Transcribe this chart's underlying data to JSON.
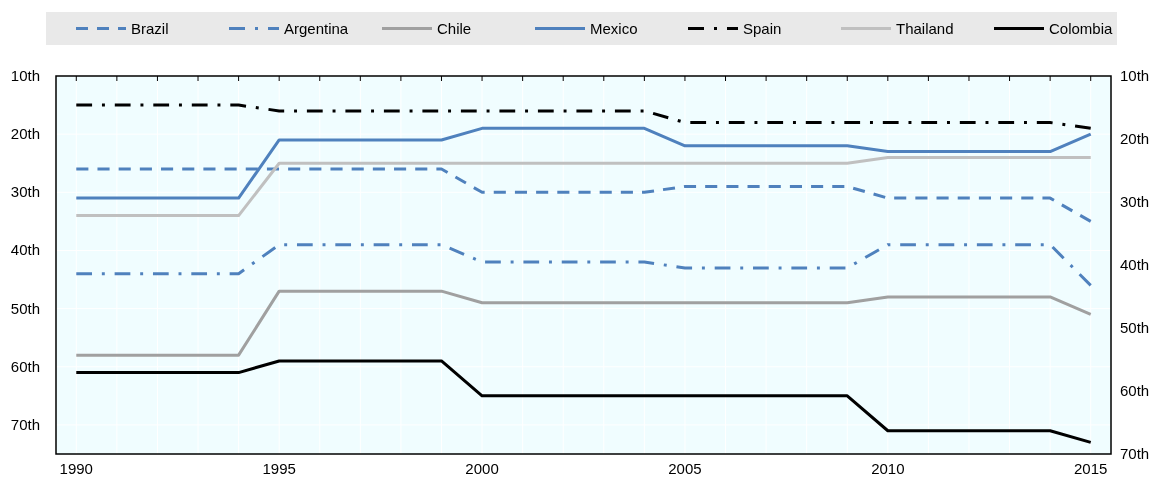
{
  "chart_data": {
    "type": "line",
    "x": [
      1990,
      1994,
      1995,
      1999,
      2000,
      2004,
      2005,
      2009,
      2010,
      2014,
      2015
    ],
    "series": [
      {
        "name": "Brazil",
        "color": "#4f81bd",
        "line_style": "dashed",
        "values": [
          26,
          26,
          26,
          26,
          30,
          30,
          29,
          29,
          31,
          31,
          35
        ]
      },
      {
        "name": "Argentina",
        "color": "#4f81bd",
        "line_style": "dashdot",
        "values": [
          44,
          44,
          39,
          39,
          42,
          42,
          43,
          43,
          39,
          39,
          46
        ]
      },
      {
        "name": "Chile",
        "color": "#a0a0a0",
        "line_style": "solid",
        "values": [
          58,
          58,
          47,
          47,
          49,
          49,
          49,
          49,
          48,
          48,
          51
        ]
      },
      {
        "name": "Mexico",
        "color": "#4f81bd",
        "line_style": "solid",
        "values": [
          31,
          31,
          21,
          21,
          19,
          19,
          22,
          22,
          23,
          23,
          20
        ]
      },
      {
        "name": "Spain",
        "color": "#000000",
        "line_style": "dashdot",
        "values": [
          15,
          15,
          16,
          16,
          16,
          16,
          18,
          18,
          18,
          18,
          19
        ]
      },
      {
        "name": "Thailand",
        "color": "#c0c0c0",
        "line_style": "solid",
        "values": [
          34,
          34,
          25,
          25,
          25,
          25,
          25,
          25,
          24,
          24,
          24
        ]
      },
      {
        "name": "Colombia",
        "color": "#000000",
        "line_style": "solid",
        "values": [
          61,
          61,
          59,
          59,
          65,
          65,
          65,
          65,
          71,
          71,
          73
        ]
      }
    ],
    "xlim": [
      1989.5,
      2015.5
    ],
    "xticks": [
      1990,
      {
        "value": 1991,
        "label": null
      },
      {
        "value": 1992,
        "label": null
      },
      {
        "value": 1993,
        "label": null
      },
      {
        "value": 1994,
        "label": null
      },
      1995,
      {
        "value": 1996,
        "label": null
      },
      {
        "value": 1997,
        "label": null
      },
      {
        "value": 1998,
        "label": null
      },
      {
        "value": 1999,
        "label": null
      },
      2000,
      {
        "value": 2001,
        "label": null
      },
      {
        "value": 2002,
        "label": null
      },
      {
        "value": 2003,
        "label": null
      },
      {
        "value": 2004,
        "label": null
      },
      2005,
      {
        "value": 2006,
        "label": null
      },
      {
        "value": 2007,
        "label": null
      },
      {
        "value": 2008,
        "label": null
      },
      {
        "value": 2009,
        "label": null
      },
      2010,
      {
        "value": 2011,
        "label": null
      },
      {
        "value": 2012,
        "label": null
      },
      {
        "value": 2013,
        "label": null
      },
      {
        "value": 2014,
        "label": null
      },
      2015
    ],
    "ylim": [
      75,
      10
    ],
    "yticks": [
      {
        "value": 10,
        "label": "10th"
      },
      {
        "value": 20,
        "label": "20th"
      },
      {
        "value": 30,
        "label": "30th"
      },
      {
        "value": 40,
        "label": "40th"
      },
      {
        "value": 50,
        "label": "50th"
      },
      {
        "value": 60,
        "label": "60th"
      },
      {
        "value": 70,
        "label": "70th"
      }
    ],
    "y2lim": [
      70,
      10
    ],
    "y2ticks": [
      {
        "value": 10,
        "label": "10th"
      },
      {
        "value": 20,
        "label": "20th"
      },
      {
        "value": 30,
        "label": "30th"
      },
      {
        "value": 40,
        "label": "40th"
      },
      {
        "value": 50,
        "label": "50th"
      },
      {
        "value": 60,
        "label": "60th"
      },
      {
        "value": 70,
        "label": "70th"
      }
    ],
    "grid": true,
    "legend": "top",
    "marker": "none"
  }
}
